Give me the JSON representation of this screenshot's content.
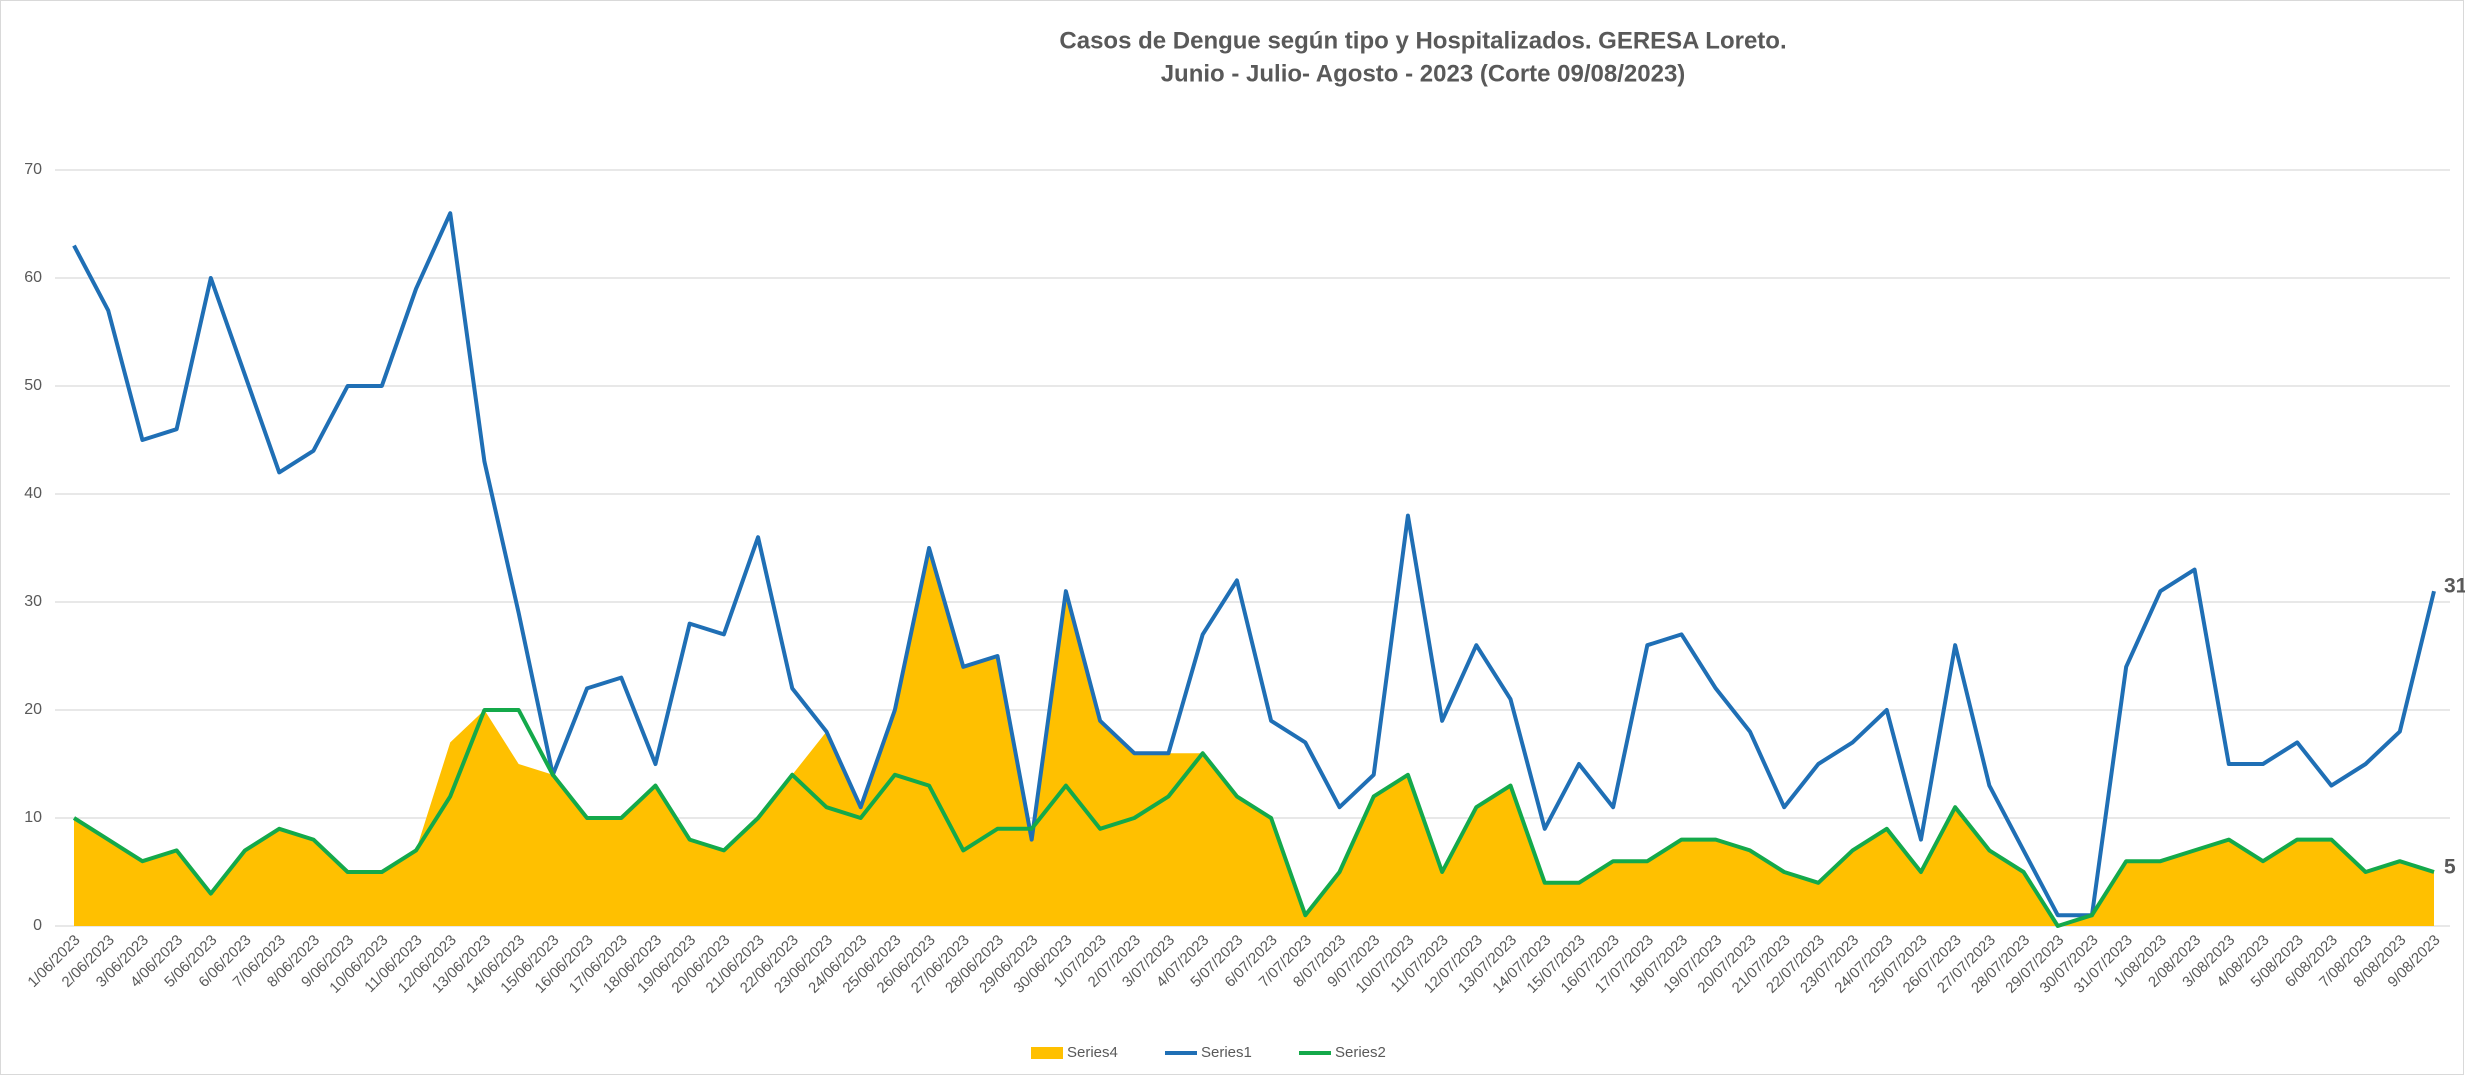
{
  "chart_data": {
    "type": "line",
    "title": [
      "Casos de Dengue según tipo y Hospitalizados. GERESA Loreto.",
      "Junio - Julio- Agosto -  2023 (Corte 09/08/2023)"
    ],
    "categories": [
      "1/06/2023",
      "2/06/2023",
      "3/06/2023",
      "4/06/2023",
      "5/06/2023",
      "6/06/2023",
      "7/06/2023",
      "8/06/2023",
      "9/06/2023",
      "10/06/2023",
      "11/06/2023",
      "12/06/2023",
      "13/06/2023",
      "14/06/2023",
      "15/06/2023",
      "16/06/2023",
      "17/06/2023",
      "18/06/2023",
      "19/06/2023",
      "20/06/2023",
      "21/06/2023",
      "22/06/2023",
      "23/06/2023",
      "24/06/2023",
      "25/06/2023",
      "26/06/2023",
      "27/06/2023",
      "28/06/2023",
      "29/06/2023",
      "30/06/2023",
      "1/07/2023",
      "2/07/2023",
      "3/07/2023",
      "4/07/2023",
      "5/07/2023",
      "6/07/2023",
      "7/07/2023",
      "8/07/2023",
      "9/07/2023",
      "10/07/2023",
      "11/07/2023",
      "12/07/2023",
      "13/07/2023",
      "14/07/2023",
      "15/07/2023",
      "16/07/2023",
      "17/07/2023",
      "18/07/2023",
      "19/07/2023",
      "20/07/2023",
      "21/07/2023",
      "22/07/2023",
      "23/07/2023",
      "24/07/2023",
      "25/07/2023",
      "26/07/2023",
      "27/07/2023",
      "28/07/2023",
      "29/07/2023",
      "30/07/2023",
      "31/07/2023",
      "1/08/2023",
      "2/08/2023",
      "3/08/2023",
      "4/08/2023",
      "5/08/2023",
      "6/08/2023",
      "7/08/2023",
      "8/08/2023",
      "9/08/2023"
    ],
    "series": [
      {
        "name": "Series4",
        "kind": "area",
        "color": "#FFC000",
        "values": [
          10,
          8,
          6,
          7,
          3,
          7,
          9,
          8,
          5,
          5,
          7,
          17,
          20,
          15,
          14,
          10,
          10,
          13,
          8,
          7,
          10,
          14,
          18,
          11,
          20,
          35,
          24,
          25,
          9,
          31,
          19,
          16,
          16,
          16,
          12,
          10,
          1,
          5,
          12,
          14,
          5,
          11,
          13,
          4,
          4,
          6,
          6,
          8,
          8,
          7,
          5,
          4,
          7,
          9,
          5,
          11,
          7,
          5,
          0,
          1,
          6,
          6,
          7,
          8,
          6,
          8,
          8,
          5,
          6,
          5
        ]
      },
      {
        "name": "Series1",
        "kind": "line",
        "color": "#1F6FB5",
        "values": [
          63,
          57,
          45,
          46,
          60,
          51,
          42,
          44,
          50,
          50,
          59,
          66,
          43,
          29,
          14,
          22,
          23,
          15,
          28,
          27,
          36,
          22,
          18,
          11,
          20,
          35,
          24,
          25,
          8,
          31,
          19,
          16,
          16,
          27,
          32,
          19,
          17,
          11,
          14,
          38,
          19,
          26,
          21,
          9,
          15,
          11,
          26,
          27,
          22,
          18,
          11,
          15,
          17,
          20,
          8,
          26,
          13,
          7,
          1,
          1,
          24,
          31,
          33,
          15,
          15,
          17,
          13,
          15,
          18,
          31
        ]
      },
      {
        "name": "Series2",
        "kind": "line",
        "color": "#14A94A",
        "values": [
          10,
          8,
          6,
          7,
          3,
          7,
          9,
          8,
          5,
          5,
          7,
          12,
          20,
          20,
          14,
          10,
          10,
          13,
          8,
          7,
          10,
          14,
          11,
          10,
          14,
          13,
          7,
          9,
          9,
          13,
          9,
          10,
          12,
          16,
          12,
          10,
          1,
          5,
          12,
          14,
          5,
          11,
          13,
          4,
          4,
          6,
          6,
          8,
          8,
          7,
          5,
          4,
          7,
          9,
          5,
          11,
          7,
          5,
          0,
          1,
          6,
          6,
          7,
          8,
          6,
          8,
          8,
          5,
          6,
          5
        ]
      }
    ],
    "ylim": [
      0,
      70
    ],
    "yticks": [
      0,
      10,
      20,
      30,
      40,
      50,
      60,
      70
    ],
    "grid": true,
    "legend": "bottom"
  }
}
